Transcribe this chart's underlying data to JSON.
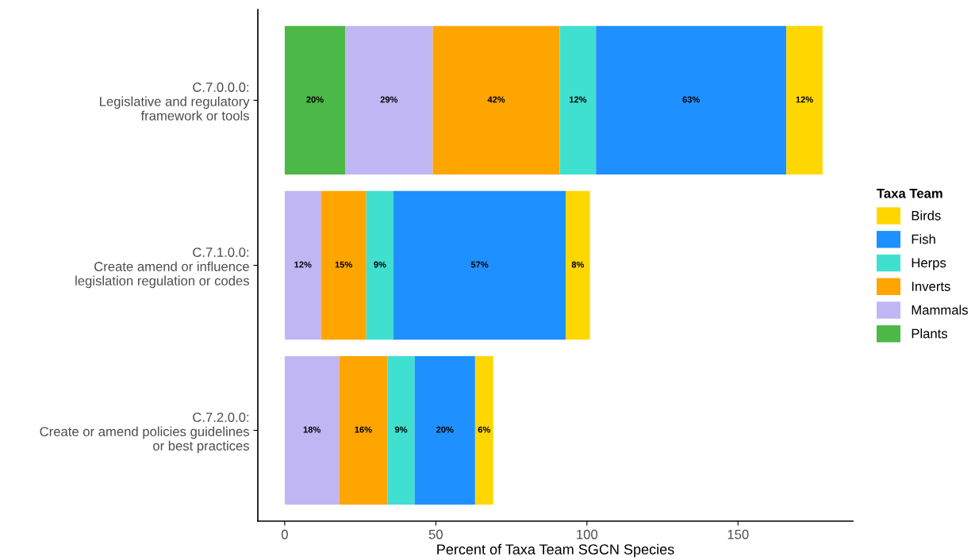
{
  "chart_data": {
    "type": "bar",
    "orientation": "horizontal",
    "stacked": true,
    "xlabel": "Percent of Taxa Team SGCN Species",
    "legend_title": "Taxa Team",
    "legend": "right",
    "categories": [
      "C.7.0.0.0:\nLegislative and regulatory\nframework or tools",
      "C.7.1.0.0:\nCreate amend or influence\nlegislation regulation or codes",
      "C.7.2.0.0:\nCreate or amend policies guidelines\nor best practices"
    ],
    "series": [
      {
        "name": "Plants",
        "color": "#4cb847",
        "values": [
          20,
          null,
          null
        ],
        "value_labels": [
          "20%",
          null,
          null
        ]
      },
      {
        "name": "Mammals",
        "color": "#c1b6f4",
        "values": [
          29,
          12,
          18
        ],
        "value_labels": [
          "29%",
          "12%",
          "18%"
        ]
      },
      {
        "name": "Inverts",
        "color": "#ffa500",
        "values": [
          42,
          15,
          16
        ],
        "value_labels": [
          "42%",
          "15%",
          "16%"
        ]
      },
      {
        "name": "Herps",
        "color": "#40e0d0",
        "values": [
          12,
          9,
          9
        ],
        "value_labels": [
          "12%",
          "9%",
          "9%"
        ]
      },
      {
        "name": "Fish",
        "color": "#1e90ff",
        "values": [
          63,
          57,
          20
        ],
        "value_labels": [
          "63%",
          "57%",
          "20%"
        ]
      },
      {
        "name": "Birds",
        "color": "#ffd700",
        "values": [
          12,
          8,
          6
        ],
        "value_labels": [
          "12%",
          "8%",
          "6%"
        ]
      }
    ],
    "xlim": [
      -8.9,
      188
    ],
    "xticks": [
      0,
      50,
      100,
      150
    ],
    "grid": false
  }
}
